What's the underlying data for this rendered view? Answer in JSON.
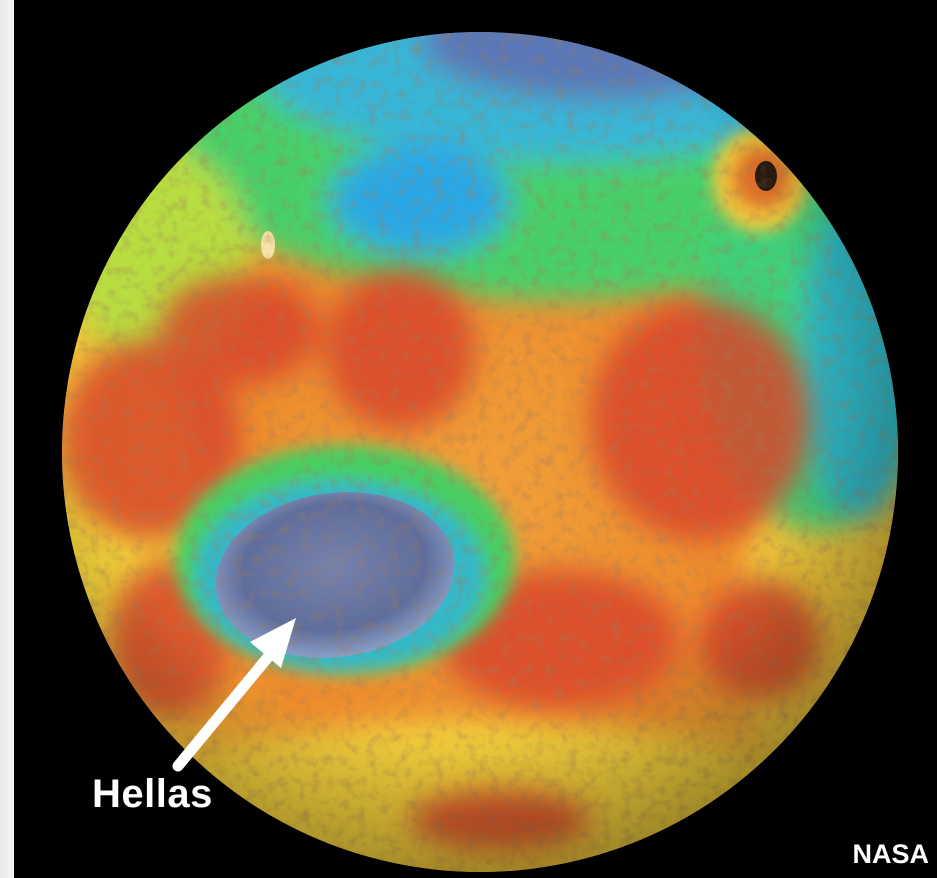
{
  "image": {
    "subject": "globe-photo",
    "background_color": "#000000"
  },
  "labels": {
    "feature_label": "Hellas",
    "credit": "NASA"
  },
  "palette": {
    "lowland_blue": "#2fa6e0",
    "deep_basin": "#6b7aa8",
    "mid_green": "#3ed36a",
    "plain_yellow": "#f2d23a",
    "highland_orange": "#f08a2a",
    "highland_red": "#d9452a",
    "arrow_white": "#ffffff"
  }
}
